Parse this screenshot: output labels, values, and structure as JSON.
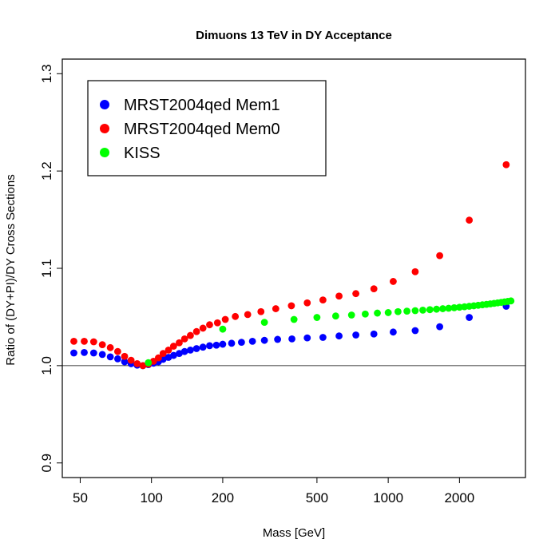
{
  "chart_data": {
    "type": "scatter",
    "title": "Dimuons 13 TeV in DY Acceptance",
    "xlabel": "Mass [GeV]",
    "ylabel": "Ratio of (DY+PI)/DY Cross Sections",
    "xscale": "log",
    "xlim": [
      42,
      3800
    ],
    "ylim": [
      0.885,
      1.315
    ],
    "xticks": [
      50,
      100,
      200,
      500,
      1000,
      2000
    ],
    "yticks": [
      0.9,
      1.0,
      1.1,
      1.2,
      1.3
    ],
    "ytick_labels": [
      "0.9",
      "1.0",
      "1.1",
      "1.2",
      "1.3"
    ],
    "reference_line": 1.0,
    "legend_position": "top-left",
    "series": [
      {
        "name": "MRST2004qed Mem1",
        "color": "#0000ff",
        "points": [
          [
            47,
            1.013
          ],
          [
            52,
            1.0135
          ],
          [
            57,
            1.013
          ],
          [
            62,
            1.0115
          ],
          [
            67,
            1.009
          ],
          [
            72,
            1.007
          ],
          [
            77,
            1.004
          ],
          [
            82,
            1.002
          ],
          [
            87,
            1.0005
          ],
          [
            92,
            1.0
          ],
          [
            97,
            1.001
          ],
          [
            102,
            1.0025
          ],
          [
            107,
            1.004
          ],
          [
            112,
            1.0065
          ],
          [
            118,
            1.0085
          ],
          [
            124,
            1.0105
          ],
          [
            131,
            1.0125
          ],
          [
            138,
            1.0145
          ],
          [
            146,
            1.016
          ],
          [
            155,
            1.0175
          ],
          [
            165,
            1.019
          ],
          [
            176,
            1.0205
          ],
          [
            188,
            1.021
          ],
          [
            200,
            1.022
          ],
          [
            218,
            1.023
          ],
          [
            240,
            1.024
          ],
          [
            267,
            1.025
          ],
          [
            300,
            1.026
          ],
          [
            341,
            1.027
          ],
          [
            392,
            1.0275
          ],
          [
            455,
            1.0285
          ],
          [
            530,
            1.029
          ],
          [
            620,
            1.0305
          ],
          [
            730,
            1.0315
          ],
          [
            870,
            1.0325
          ],
          [
            1050,
            1.0345
          ],
          [
            1300,
            1.036
          ],
          [
            1650,
            1.04
          ],
          [
            2200,
            1.0495
          ],
          [
            3150,
            1.061
          ]
        ]
      },
      {
        "name": "MRST2004qed Mem0",
        "color": "#ff0000",
        "points": [
          [
            47,
            1.025
          ],
          [
            52,
            1.025
          ],
          [
            57,
            1.0245
          ],
          [
            62,
            1.0215
          ],
          [
            67,
            1.0185
          ],
          [
            72,
            1.0145
          ],
          [
            77,
            1.0095
          ],
          [
            82,
            1.0055
          ],
          [
            87,
            1.002
          ],
          [
            92,
            1.0
          ],
          [
            97,
            1.0015
          ],
          [
            102,
            1.0045
          ],
          [
            107,
            1.008
          ],
          [
            112,
            1.0125
          ],
          [
            118,
            1.016
          ],
          [
            124,
            1.02
          ],
          [
            131,
            1.0235
          ],
          [
            138,
            1.0275
          ],
          [
            146,
            1.031
          ],
          [
            155,
            1.035
          ],
          [
            165,
            1.0385
          ],
          [
            176,
            1.042
          ],
          [
            190,
            1.044
          ],
          [
            205,
            1.0475
          ],
          [
            226,
            1.0505
          ],
          [
            255,
            1.0525
          ],
          [
            290,
            1.0555
          ],
          [
            335,
            1.0585
          ],
          [
            390,
            1.0615
          ],
          [
            455,
            1.0645
          ],
          [
            530,
            1.0675
          ],
          [
            620,
            1.0715
          ],
          [
            730,
            1.074
          ],
          [
            870,
            1.079
          ],
          [
            1050,
            1.0865
          ],
          [
            1300,
            1.0965
          ],
          [
            1650,
            1.113
          ],
          [
            2200,
            1.1495
          ],
          [
            3150,
            1.2065
          ]
        ]
      },
      {
        "name": "KISS",
        "color": "#00ff00",
        "points": [
          [
            97,
            1.003
          ],
          [
            200,
            1.0375
          ],
          [
            300,
            1.0445
          ],
          [
            400,
            1.0475
          ],
          [
            500,
            1.0495
          ],
          [
            600,
            1.051
          ],
          [
            700,
            1.052
          ],
          [
            800,
            1.053
          ],
          [
            900,
            1.054
          ],
          [
            1000,
            1.0545
          ],
          [
            1100,
            1.0555
          ],
          [
            1200,
            1.056
          ],
          [
            1300,
            1.0565
          ],
          [
            1400,
            1.057
          ],
          [
            1500,
            1.0575
          ],
          [
            1600,
            1.058
          ],
          [
            1700,
            1.0585
          ],
          [
            1800,
            1.059
          ],
          [
            1900,
            1.0595
          ],
          [
            2000,
            1.06
          ],
          [
            2100,
            1.0605
          ],
          [
            2200,
            1.061
          ],
          [
            2300,
            1.0615
          ],
          [
            2400,
            1.062
          ],
          [
            2500,
            1.0625
          ],
          [
            2600,
            1.063
          ],
          [
            2700,
            1.0635
          ],
          [
            2800,
            1.064
          ],
          [
            2900,
            1.0645
          ],
          [
            3000,
            1.065
          ],
          [
            3100,
            1.0655
          ],
          [
            3200,
            1.066
          ],
          [
            3300,
            1.0665
          ]
        ]
      }
    ]
  }
}
